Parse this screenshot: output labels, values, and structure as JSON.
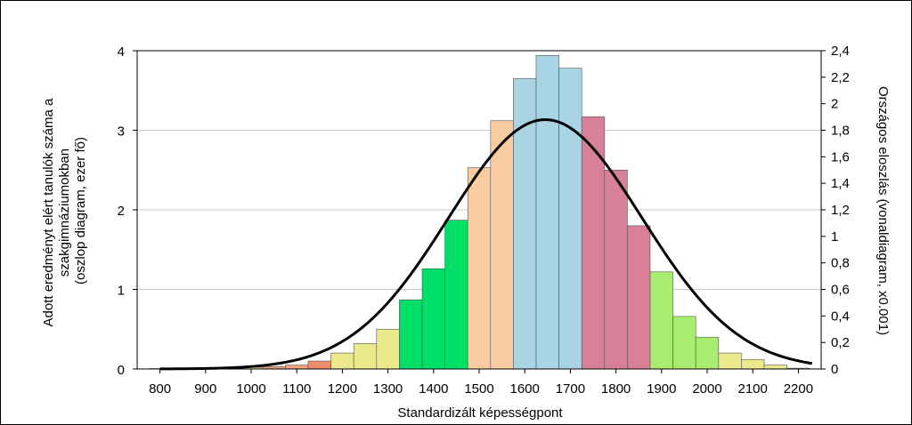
{
  "chart_data": {
    "type": "bar",
    "xlabel": "Standardizált képességpont",
    "ylabel_left": [
      "Adott eredményt elért tanulók száma a",
      "szakgimnáziumokban",
      "(oszlop diagram, ezer fő)"
    ],
    "ylabel_right": "Országos eloszlás (vonaldiagram, x0.001)",
    "xlim": [
      750,
      2250
    ],
    "ylim_left": [
      0,
      4
    ],
    "ylim_right": [
      0,
      2.4
    ],
    "x_ticks": [
      800,
      900,
      1000,
      1100,
      1200,
      1300,
      1400,
      1500,
      1600,
      1700,
      1800,
      1900,
      2000,
      2100,
      2200
    ],
    "y_left_ticks": [
      0,
      1,
      2,
      3,
      4
    ],
    "y_right_ticks": [
      "0",
      "0,2",
      "0,4",
      "0,6",
      "0,8",
      "1",
      "1,2",
      "1,4",
      "1,6",
      "1,8",
      "2",
      "2,2",
      "2,4"
    ],
    "grid": true,
    "bars": {
      "bin_width": 50,
      "bin_centers": [
        800,
        850,
        900,
        950,
        1000,
        1050,
        1100,
        1150,
        1200,
        1250,
        1300,
        1350,
        1400,
        1450,
        1500,
        1550,
        1600,
        1650,
        1700,
        1750,
        1800,
        1850,
        1900,
        1950,
        2000,
        2050,
        2100,
        2150,
        2200
      ],
      "values": [
        0.005,
        0.005,
        0.005,
        0.01,
        0.02,
        0.03,
        0.05,
        0.1,
        0.2,
        0.32,
        0.5,
        0.87,
        1.26,
        1.87,
        2.53,
        3.12,
        3.65,
        3.94,
        3.78,
        3.17,
        2.5,
        1.8,
        1.22,
        0.66,
        0.4,
        0.2,
        0.12,
        0.05,
        0.01
      ],
      "colors": [
        "#ffe8a0",
        "#ffe8a0",
        "#ffe8a0",
        "#ffe8a0",
        "#ffe8a0",
        "#f5a080",
        "#f5a080",
        "#f08c70",
        "#ece88c",
        "#ece88c",
        "#ece88c",
        "#00e068",
        "#00e068",
        "#00e068",
        "#f8cca0",
        "#f8cca0",
        "#a8d4e4",
        "#a8d4e4",
        "#a8d4e4",
        "#d88098",
        "#d88098",
        "#d88098",
        "#a8ec70",
        "#a8ec70",
        "#a8ec70",
        "#ece88c",
        "#ece88c",
        "#ece88c",
        "#ece88c"
      ]
    },
    "curve": {
      "type": "normal",
      "mean": 1645,
      "std": 212,
      "peak": 1.88,
      "x_range": [
        800,
        2230
      ]
    }
  }
}
